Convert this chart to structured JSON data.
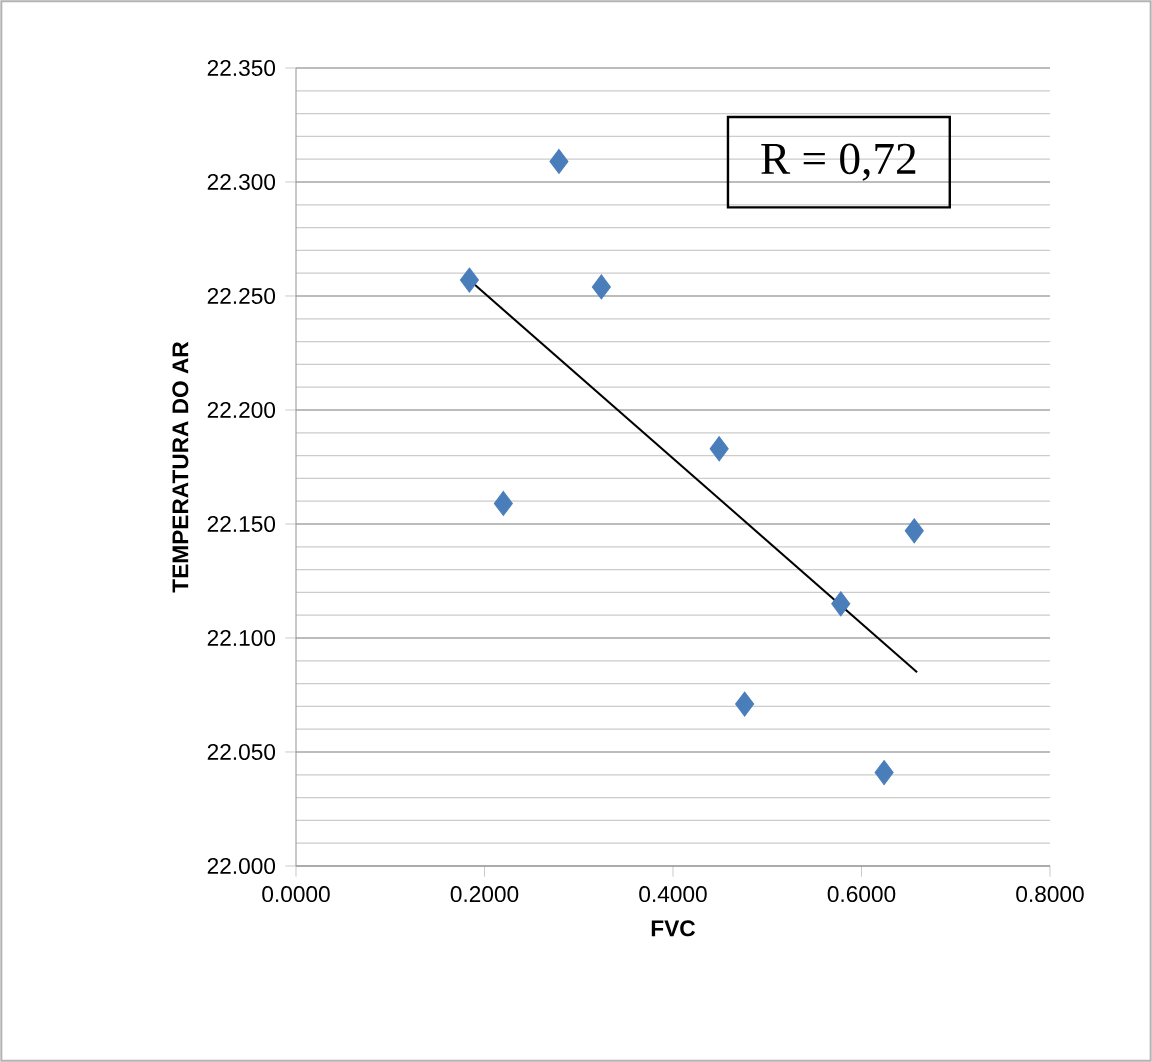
{
  "chart_data": {
    "type": "scatter",
    "xlabel": "FVC",
    "ylabel": "TEMPERATURA DO AR",
    "xlim": [
      0,
      0.8
    ],
    "ylim": [
      22.0,
      22.35
    ],
    "xticks": [
      {
        "value": 0,
        "label": "0.0000"
      },
      {
        "value": 0.2,
        "label": "0.2000"
      },
      {
        "value": 0.4,
        "label": "0.4000"
      },
      {
        "value": 0.6,
        "label": "0.6000"
      },
      {
        "value": 0.8,
        "label": "0.8000"
      }
    ],
    "yticks": [
      {
        "value": 22.0,
        "label": "22.000"
      },
      {
        "value": 22.05,
        "label": "22.050"
      },
      {
        "value": 22.1,
        "label": "22.100"
      },
      {
        "value": 22.15,
        "label": "22.150"
      },
      {
        "value": 22.2,
        "label": "22.200"
      },
      {
        "value": 22.25,
        "label": "22.250"
      },
      {
        "value": 22.3,
        "label": "22.300"
      },
      {
        "value": 22.35,
        "label": "22.350"
      }
    ],
    "grid": "y",
    "marker": "diamond",
    "series": [
      {
        "color": "#4a7ebb",
        "x": [
          0.184,
          0.279,
          0.324,
          0.449,
          0.22,
          0.656,
          0.578,
          0.476,
          0.624
        ],
        "values": [
          22.257,
          22.309,
          22.254,
          22.183,
          22.159,
          22.147,
          22.115,
          22.071,
          22.041
        ]
      },
      {
        "type": "line",
        "color": "#000000",
        "marker": "none",
        "x": [
          0.184,
          0.659
        ],
        "values": [
          22.257,
          22.085
        ]
      }
    ],
    "annotations": [
      "R = 0,72"
    ]
  }
}
